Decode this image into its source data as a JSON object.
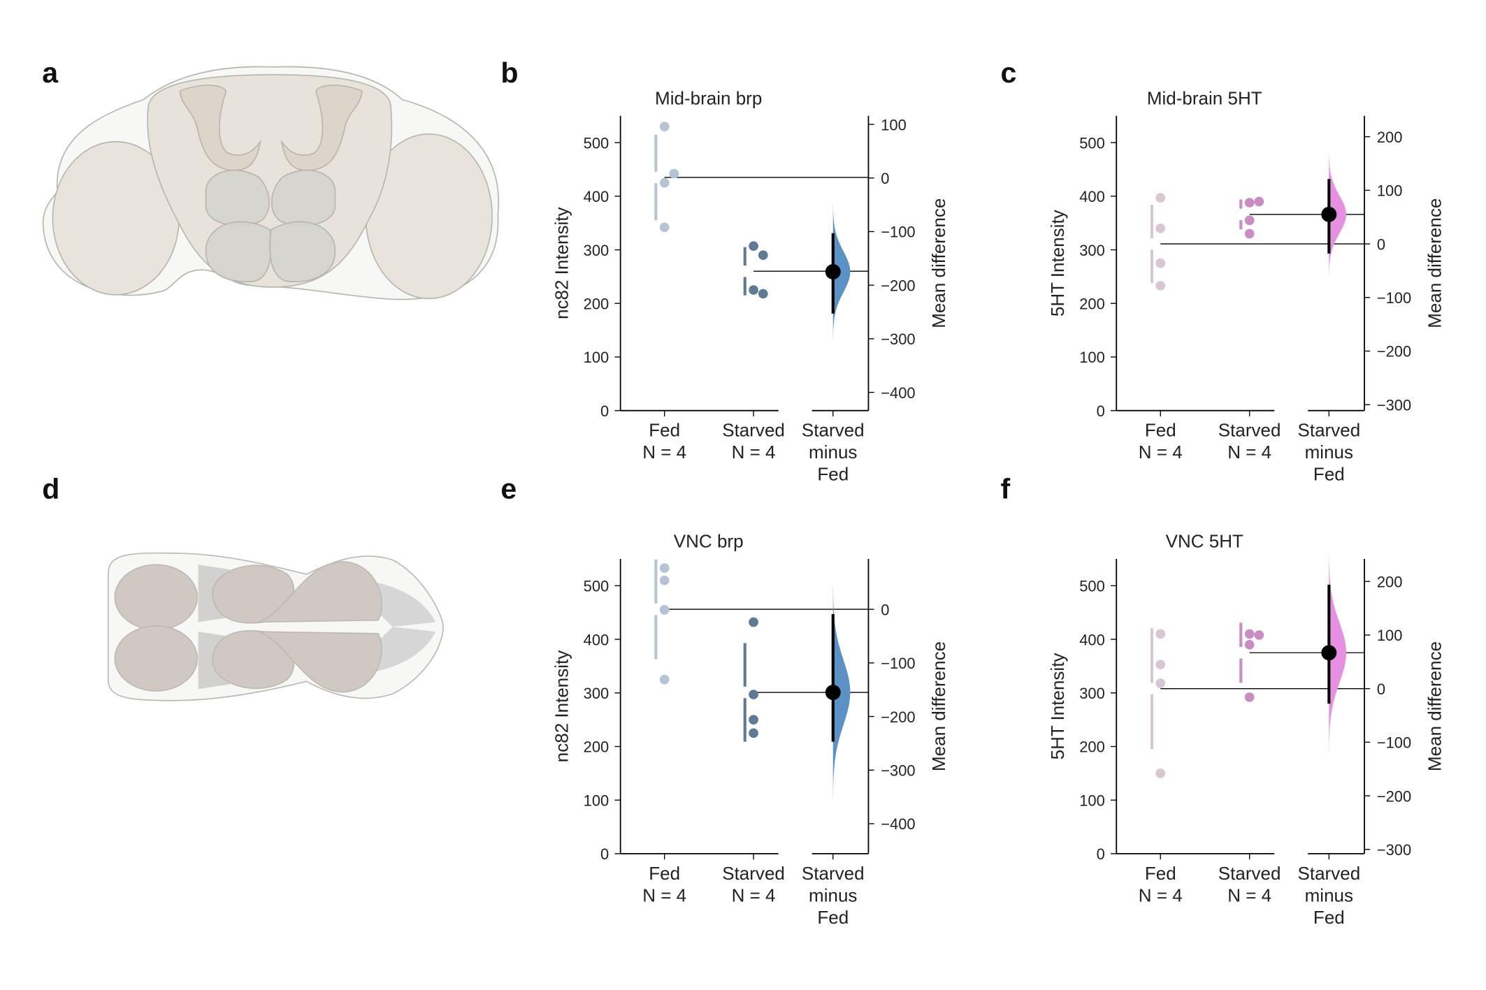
{
  "panel_labels": [
    "a",
    "b",
    "c",
    "d",
    "e",
    "f"
  ],
  "chart_data": [
    {
      "type": "estimation",
      "title": "Mid-brain brp",
      "ylabel": "nc82 Intensity",
      "y2label": "Mean difference",
      "ylim": [
        0,
        550
      ],
      "yticks": [
        0,
        100,
        200,
        300,
        400,
        500
      ],
      "y2lim": [
        -434,
        116
      ],
      "y2ticks": [
        100,
        0,
        {
          "value": -100,
          "label": "−100"
        },
        {
          "value": -200,
          "label": "−200"
        },
        {
          "value": -300,
          "label": "−300"
        },
        {
          "value": -400,
          "label": "−400"
        }
      ],
      "groups": [
        {
          "name": "Fed",
          "n_label": "N = 4",
          "color": "#b4c4d4",
          "values": [
            530,
            425,
            442,
            342
          ],
          "mean": 435,
          "sd": 80
        },
        {
          "name": "Starved",
          "n_label": "N = 4",
          "color": "#5e7a94",
          "values": [
            307,
            290,
            225,
            218
          ],
          "mean": 260,
          "sd": 45
        }
      ],
      "delta": {
        "label": [
          "Starved",
          "minus",
          "Fed"
        ],
        "color": "#5b91c4",
        "mean_difference": -175,
        "ci": [
          -253,
          -103
        ]
      }
    },
    {
      "type": "estimation",
      "title": "Mid-brain 5HT",
      "ylabel": "5HT Intensity",
      "y2label": "Mean difference",
      "ylim": [
        0,
        550
      ],
      "yticks": [
        0,
        100,
        200,
        300,
        400,
        500
      ],
      "y2lim": [
        -311,
        239
      ],
      "y2ticks": [
        200,
        100,
        0,
        {
          "value": -100,
          "label": "−100"
        },
        {
          "value": -200,
          "label": "−200"
        },
        {
          "value": -300,
          "label": "−300"
        }
      ],
      "groups": [
        {
          "name": "Fed",
          "n_label": "N = 4",
          "color": "#d8c6d3",
          "values": [
            397,
            340,
            275,
            233
          ],
          "mean": 311,
          "sd": 73
        },
        {
          "name": "Starved",
          "n_label": "N = 4",
          "color": "#c98cc3",
          "values": [
            388,
            390,
            355,
            330
          ],
          "mean": 366,
          "sd": 28
        }
      ],
      "delta": {
        "label": [
          "Starved",
          "minus",
          "Fed"
        ],
        "color": "#e590e0",
        "mean_difference": 55,
        "ci": [
          -18,
          121
        ]
      }
    },
    {
      "type": "estimation",
      "title": "VNC brp",
      "ylabel": "nc82 Intensity",
      "y2label": "Mean difference",
      "ylim": [
        0,
        550
      ],
      "yticks": [
        0,
        100,
        200,
        300,
        400,
        500
      ],
      "y2lim": [
        -456,
        94
      ],
      "y2ticks": [
        0,
        {
          "value": -100,
          "label": "−100"
        },
        {
          "value": -200,
          "label": "−200"
        },
        {
          "value": -300,
          "label": "−300"
        },
        {
          "value": -400,
          "label": "−400"
        }
      ],
      "groups": [
        {
          "name": "Fed",
          "n_label": "N = 4",
          "color": "#b4c4d4",
          "values": [
            533,
            510,
            455,
            325
          ],
          "mean": 456,
          "sd": 93
        },
        {
          "name": "Starved",
          "n_label": "N = 4",
          "color": "#5e7a94",
          "values": [
            432,
            297,
            250,
            225
          ],
          "mean": 301,
          "sd": 92
        }
      ],
      "delta": {
        "label": [
          "Starved",
          "minus",
          "Fed"
        ],
        "color": "#5b91c4",
        "mean_difference": -155,
        "ci": [
          -247,
          -9
        ]
      }
    },
    {
      "type": "estimation",
      "title": "VNC 5HT",
      "ylabel": "5HT Intensity",
      "y2label": "Mean difference",
      "ylim": [
        0,
        550
      ],
      "yticks": [
        0,
        100,
        200,
        300,
        400,
        500
      ],
      "y2lim": [
        -308,
        242
      ],
      "y2ticks": [
        200,
        100,
        0,
        {
          "value": -100,
          "label": "−100"
        },
        {
          "value": -200,
          "label": "−200"
        },
        {
          "value": -300,
          "label": "−300"
        }
      ],
      "groups": [
        {
          "name": "Fed",
          "n_label": "N = 4",
          "color": "#d8c6d3",
          "values": [
            410,
            353,
            318,
            150
          ],
          "mean": 308,
          "sd": 113
        },
        {
          "name": "Starved",
          "n_label": "N = 4",
          "color": "#c98cc3",
          "values": [
            410,
            408,
            390,
            292
          ],
          "mean": 375,
          "sd": 56
        }
      ],
      "delta": {
        "label": [
          "Starved",
          "minus",
          "Fed"
        ],
        "color": "#e590e0",
        "mean_difference": 67,
        "ci": [
          -28,
          194
        ]
      }
    }
  ]
}
